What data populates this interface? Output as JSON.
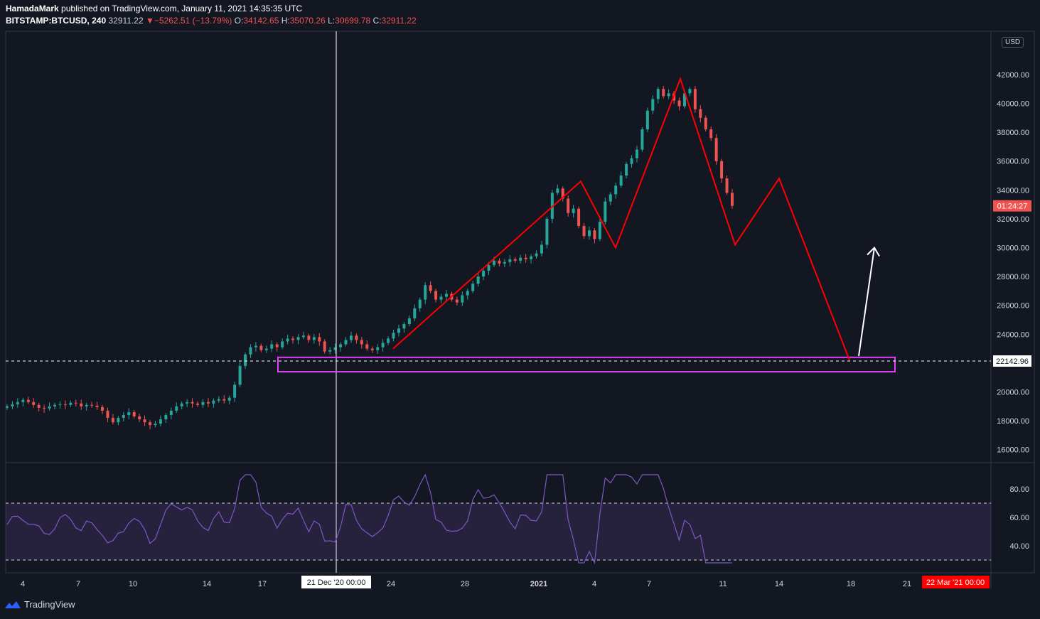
{
  "header": {
    "author": "HamadaMark",
    "published": "published on TradingView.com, January 11, 2021 14:35:35 UTC",
    "symbol": "BITSTAMP:BTCUSD, 240",
    "last": "32911.22",
    "change": "−5262.51 (−13.79%)",
    "o_label": "O:",
    "o": "34142.65",
    "h_label": "H:",
    "h": "35070.26",
    "l_label": "L:",
    "l": "30699.78",
    "c_label": "C:",
    "c": "32911.22"
  },
  "currency": "USD",
  "footer": {
    "brand": "TradingView"
  },
  "chart_data": {
    "type": "candlestick",
    "yaxis_ticks": [
      "42000.00",
      "40000.00",
      "38000.00",
      "36000.00",
      "34000.00",
      "32000.00",
      "30000.00",
      "28000.00",
      "26000.00",
      "24000.00",
      "20000.00",
      "18000.00",
      "16000.00"
    ],
    "ylim": [
      16000,
      44000
    ],
    "xaxis_ticks": [
      "4",
      "7",
      "10",
      "14",
      "17",
      "24",
      "28",
      "2021",
      "4",
      "7",
      "11",
      "14",
      "18",
      "21"
    ],
    "crosshair_label": "21 Dec '20   00:00",
    "end_label": "22 Mar '21   00:00",
    "countdown_label": "01:24:27",
    "hline_value": 22142.96,
    "hline_label": "22142.96",
    "support_zone": [
      21400,
      22400
    ],
    "pattern_points": [
      [
        23000,
        0
      ],
      [
        34600,
        1
      ],
      [
        30000,
        2
      ],
      [
        41700,
        3
      ],
      [
        30200,
        4
      ],
      [
        34800,
        5
      ],
      [
        22200,
        6
      ]
    ],
    "projection_arrow": [
      22200,
      30000
    ],
    "rsi": {
      "ticks": [
        "80.00",
        "60.00",
        "40.00"
      ],
      "bands": [
        70,
        30
      ],
      "ylim": [
        25,
        95
      ]
    },
    "candles_close": [
      19000,
      19150,
      19300,
      19450,
      19300,
      19100,
      18900,
      18850,
      19000,
      19100,
      19150,
      19100,
      19250,
      19200,
      19000,
      19100,
      19050,
      18950,
      18700,
      18200,
      17900,
      18200,
      18400,
      18600,
      18300,
      18100,
      17900,
      17700,
      17800,
      18100,
      18400,
      18700,
      19000,
      19200,
      19300,
      19200,
      19100,
      19300,
      19200,
      19400,
      19500,
      19400,
      19600,
      20500,
      21800,
      22600,
      23100,
      23200,
      22900,
      23000,
      23300,
      23100,
      23500,
      23700,
      23600,
      23800,
      23900,
      23600,
      23800,
      23500,
      22800,
      22900,
      23100,
      23300,
      23600,
      23900,
      23600,
      23300,
      23000,
      22900,
      23100,
      23400,
      23700,
      24100,
      24400,
      24700,
      25100,
      25800,
      26400,
      27400,
      27000,
      26400,
      26600,
      26800,
      26400,
      26200,
      26700,
      27000,
      27500,
      28000,
      28400,
      28800,
      29100,
      28900,
      29000,
      29200,
      29100,
      29300,
      29200,
      29400,
      29600,
      30200,
      32000,
      33800,
      34100,
      33400,
      32400,
      32700,
      31500,
      30800,
      31200,
      30600,
      31800,
      33200,
      33700,
      34300,
      35000,
      35800,
      36200,
      36800,
      38200,
      39500,
      40300,
      41000,
      40500,
      40700,
      40200,
      39800,
      40700,
      41000,
      39600,
      39000,
      38200,
      37600,
      36000,
      34800,
      33800,
      32900
    ]
  }
}
